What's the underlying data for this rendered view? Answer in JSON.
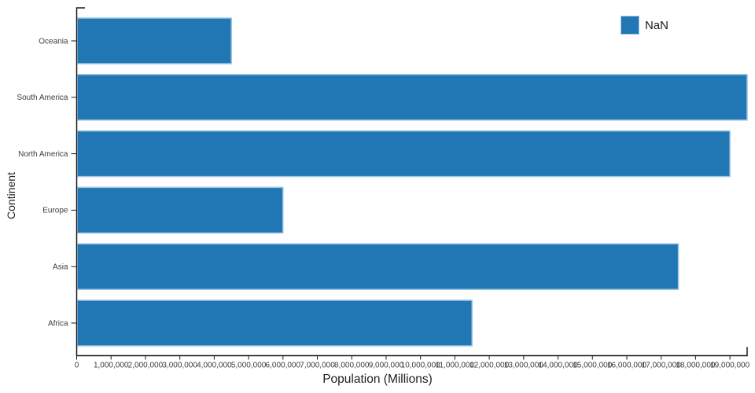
{
  "chart_data": {
    "type": "bar",
    "orientation": "horizontal",
    "title": "",
    "xlabel": "Population (Millions)",
    "ylabel": "Continent",
    "categories_top_to_bottom": [
      "Oceania",
      "South America",
      "North America",
      "Europe",
      "Asia",
      "Africa"
    ],
    "values": [
      4500000,
      19500000,
      19000000,
      6000000,
      17500000,
      11500000
    ],
    "xlim": [
      0,
      19500000
    ],
    "x_tick_step": 1000000,
    "x_tick_labels": [
      "0",
      "1,000,000",
      "2,000,000",
      "3,000,000",
      "4,000,000",
      "5,000,000",
      "6,000,000",
      "7,000,000",
      "8,000,000",
      "9,000,000",
      "10,000,000",
      "11,000,000",
      "12,000,000",
      "13,000,000",
      "14,000,000",
      "15,000,000",
      "16,000,000",
      "17,000,000",
      "18,000,000",
      "19,000,000"
    ],
    "grid": false,
    "legend": {
      "label": "NaN",
      "position": "top-right"
    },
    "colors": {
      "bar_fill": "#2077b4",
      "bar_stroke": "#9cc6e6",
      "axis_line": "#1a1a1a",
      "tick_label": "#3d3d3d",
      "title_text": "#1f1f1f"
    }
  }
}
